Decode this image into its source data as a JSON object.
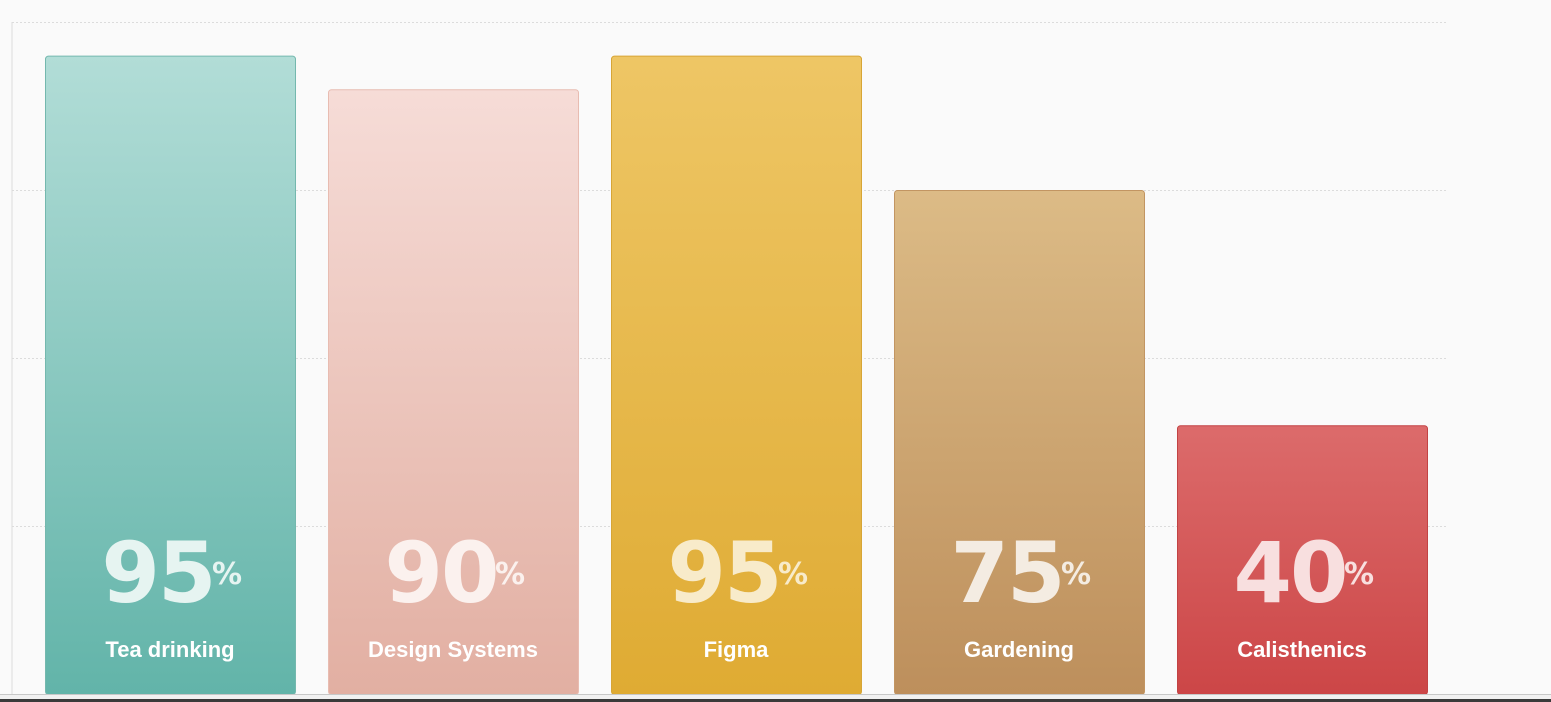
{
  "chart_data": {
    "type": "bar",
    "categories": [
      "Tea drinking",
      "Design Systems",
      "Figma",
      "Gardening",
      "Calisthenics"
    ],
    "values": [
      95,
      90,
      95,
      75,
      40
    ],
    "value_suffix": "%",
    "ylim": [
      0,
      100
    ],
    "grid": true,
    "legend": "none",
    "bar_colors": [
      {
        "top": "#b2ddd7",
        "bottom": "#62b4a9",
        "border": "#74b8ae",
        "text": "#e6f4f1"
      },
      {
        "top": "#f6dcd7",
        "bottom": "#e2afa2",
        "border": "#e8bcb1",
        "text": "#fbf1ee"
      },
      {
        "top": "#eec665",
        "bottom": "#dfab33",
        "border": "#d7a536",
        "text": "#f8ebca"
      },
      {
        "top": "#dcbb86",
        "bottom": "#bd8f5c",
        "border": "#c29562",
        "text": "#f4ece2"
      },
      {
        "top": "#dc6b6b",
        "bottom": "#cc4647",
        "border": "#c24344",
        "text": "#f8dfdf"
      }
    ],
    "grid_color": "#dcdcdc"
  }
}
